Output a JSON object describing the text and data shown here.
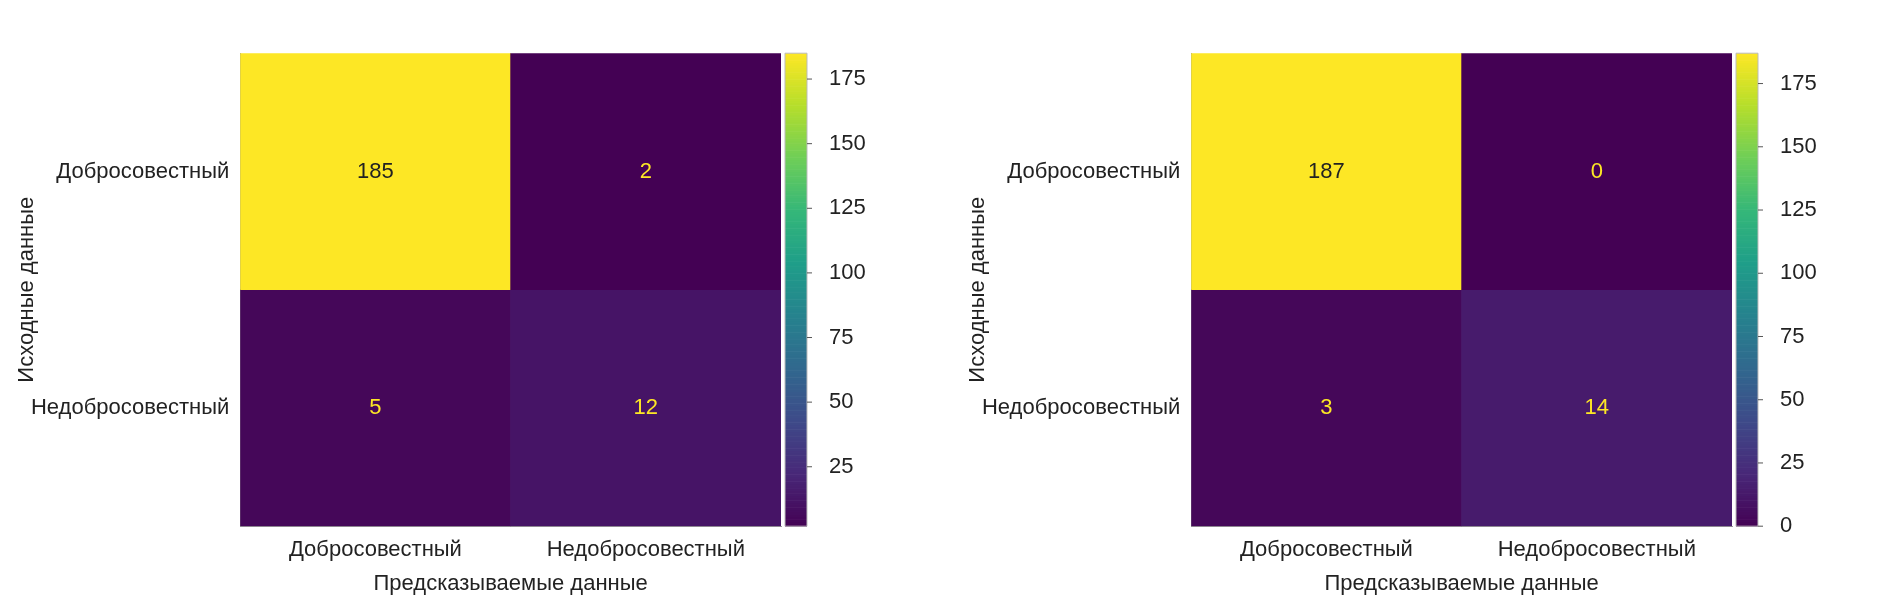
{
  "chart_data": [
    {
      "type": "heatmap",
      "xlabel": "Предсказываемые данные",
      "ylabel": "Исходные данные",
      "categories": [
        "Добросовестный",
        "Недобросовестный"
      ],
      "y_categories": [
        "Добросовестный",
        "Недобросовестный"
      ],
      "cells": [
        [
          185,
          2
        ],
        [
          5,
          12
        ]
      ],
      "clim": [
        2,
        185
      ],
      "cticks": [
        25,
        50,
        75,
        100,
        125,
        150,
        175
      ],
      "data_labels": true
    },
    {
      "type": "heatmap",
      "xlabel": "Предсказываемые данные",
      "ylabel": "Исходные данные",
      "categories": [
        "Добросовестный",
        "Недобросовестный"
      ],
      "y_categories": [
        "Добросовестный",
        "Недобросовестный"
      ],
      "cells": [
        [
          187,
          0
        ],
        [
          3,
          14
        ]
      ],
      "clim": [
        0,
        187
      ],
      "cticks": [
        0,
        25,
        50,
        75,
        100,
        125,
        150,
        175
      ],
      "data_labels": true
    }
  ]
}
